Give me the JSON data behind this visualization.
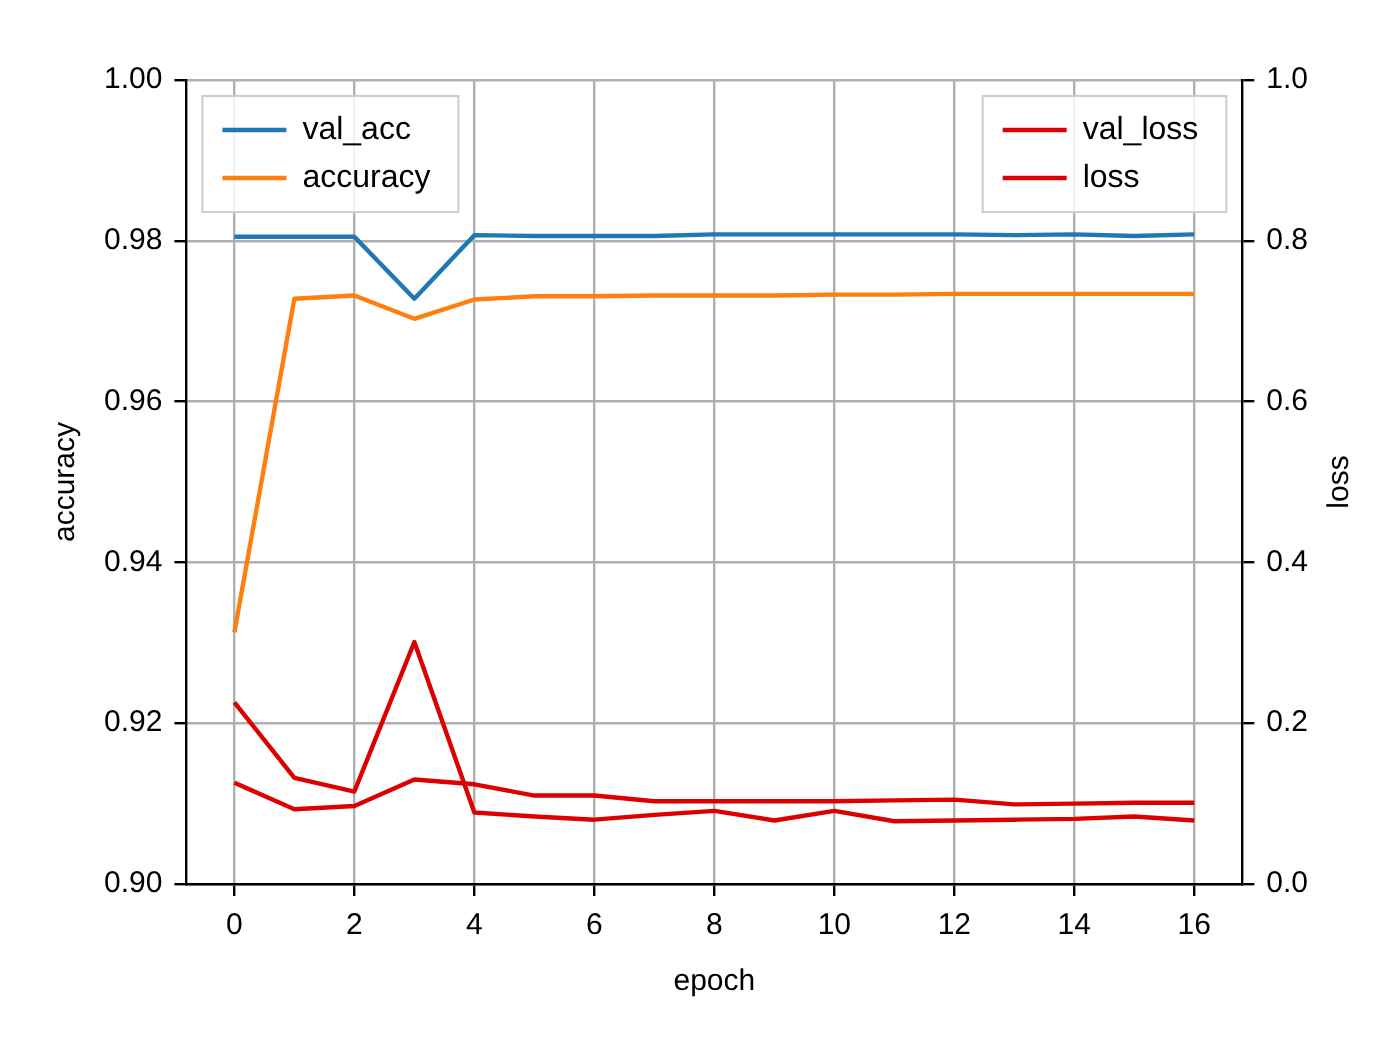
{
  "chart_data": {
    "type": "line",
    "xlabel": "epoch",
    "ylabel": "accuracy",
    "y2label": "loss",
    "x": [
      0,
      1,
      2,
      3,
      4,
      5,
      6,
      7,
      8,
      9,
      10,
      11,
      12,
      13,
      14,
      15,
      16
    ],
    "series": [
      {
        "name": "val_acc",
        "color": "#1f77b4",
        "values": [
          0.9805,
          0.9805,
          0.9805,
          0.9728,
          0.9807,
          0.9806,
          0.9806,
          0.9806,
          0.9808,
          0.9808,
          0.9808,
          0.9808,
          0.9808,
          0.9807,
          0.9808,
          0.9806,
          0.9808
        ]
      },
      {
        "name": "accuracy",
        "color": "#ff7f0e",
        "values": [
          0.9313,
          0.9728,
          0.9732,
          0.9703,
          0.9727,
          0.9731,
          0.9731,
          0.9732,
          0.9732,
          0.9732,
          0.9733,
          0.9733,
          0.9734,
          0.9734,
          0.9734,
          0.9734,
          0.9734
        ]
      },
      {
        "name": "val_loss",
        "color": "#dd0000",
        "axis": "y2",
        "values": [
          0.226,
          0.132,
          0.115,
          0.301,
          0.089,
          0.084,
          0.08,
          0.086,
          0.091,
          0.079,
          0.091,
          0.078,
          0.079,
          0.08,
          0.081,
          0.084,
          0.079
        ]
      },
      {
        "name": "loss",
        "color": "#dd0000",
        "axis": "y2",
        "values": [
          0.126,
          0.093,
          0.097,
          0.13,
          0.124,
          0.11,
          0.11,
          0.103,
          0.103,
          0.103,
          0.103,
          0.104,
          0.105,
          0.099,
          0.1,
          0.101,
          0.101
        ]
      }
    ],
    "xlim": [
      -0.8,
      16.8
    ],
    "xticks": [
      0,
      2,
      4,
      6,
      8,
      10,
      12,
      14,
      16
    ],
    "ylim": [
      0.9,
      1.0
    ],
    "yticks": [
      {
        "value": 0.9,
        "label": "0.90"
      },
      {
        "value": 0.92,
        "label": "0.92"
      },
      {
        "value": 0.94,
        "label": "0.94"
      },
      {
        "value": 0.96,
        "label": "0.96"
      },
      {
        "value": 0.98,
        "label": "0.98"
      },
      {
        "value": 1.0,
        "label": "1.00"
      }
    ],
    "y2lim": [
      0,
      1
    ],
    "y2ticks": [
      {
        "value": 0,
        "label": "0.0"
      },
      {
        "value": 0.2,
        "label": "0.2"
      },
      {
        "value": 0.4,
        "label": "0.4"
      },
      {
        "value": 0.6,
        "label": "0.6"
      },
      {
        "value": 0.8,
        "label": "0.8"
      },
      {
        "value": 1,
        "label": "1.0"
      }
    ],
    "grid": true,
    "legend": "top left",
    "marker": "none",
    "line_style": "solid"
  }
}
